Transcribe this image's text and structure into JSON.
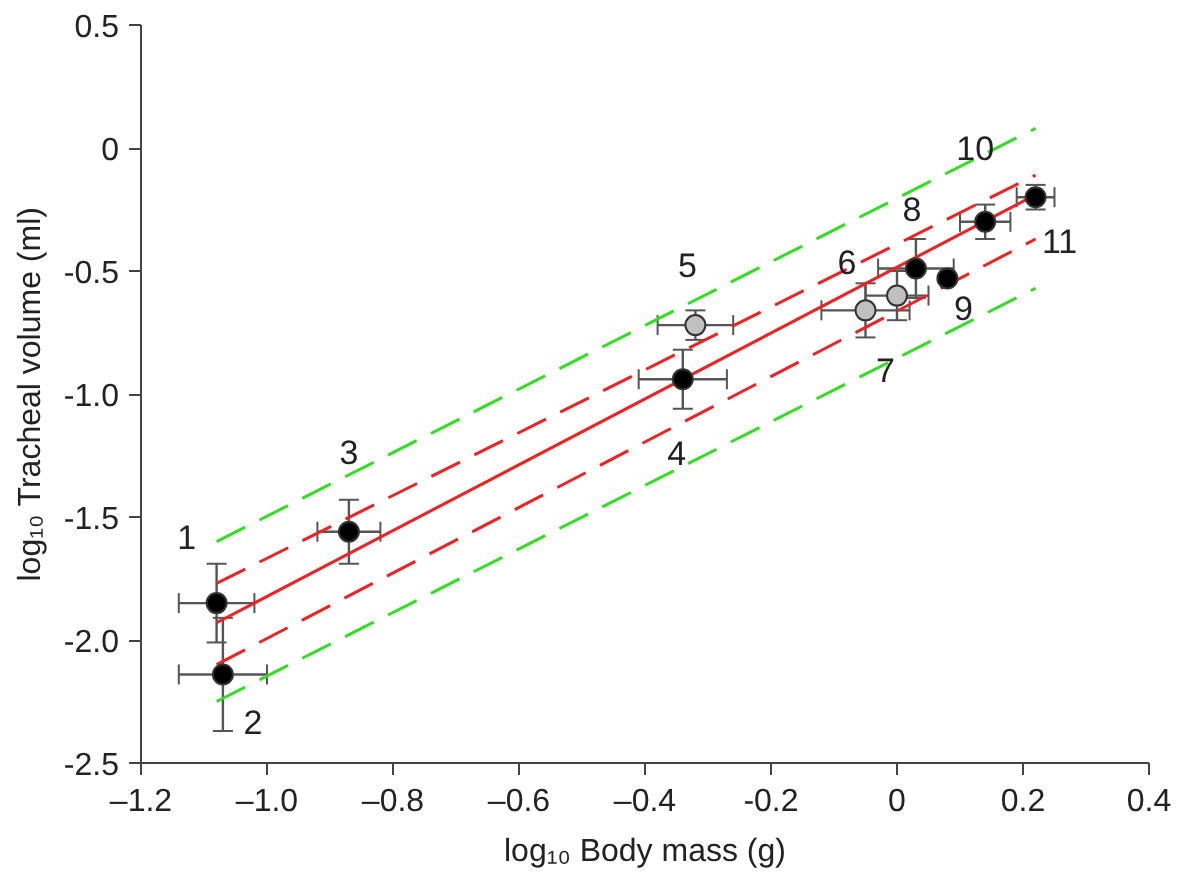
{
  "chart_data": {
    "type": "scatter",
    "xlabel": "log₁₀ Body mass (g)",
    "ylabel": "log₁₀ Tracheal volume (ml)",
    "xlim": [
      -1.2,
      0.4
    ],
    "ylim": [
      -2.5,
      0.5
    ],
    "xticks": [
      {
        "value": -1.2,
        "label": "–1.2"
      },
      {
        "value": -1.0,
        "label": "–1.0"
      },
      {
        "value": -0.8,
        "label": "–0.8"
      },
      {
        "value": -0.6,
        "label": "–0.6"
      },
      {
        "value": -0.4,
        "label": "–0.4"
      },
      {
        "value": -0.2,
        "label": "-0.2"
      },
      0,
      0.2,
      0.4
    ],
    "yticks": [
      0.5,
      0,
      {
        "value": -0.5,
        "label": "-0.5"
      },
      {
        "value": -1.0,
        "label": "-1.0"
      },
      {
        "value": -1.5,
        "label": "-1.5"
      },
      {
        "value": -2.0,
        "label": "-2.0"
      },
      {
        "value": -2.5,
        "label": "-2.5"
      }
    ],
    "grid": false,
    "series": [
      {
        "type": "line",
        "color": "#33dd22",
        "line_style": "dashed",
        "x": [
          -1.08,
          0.22
        ],
        "values": [
          -1.6,
          0.08
        ]
      },
      {
        "type": "line",
        "color": "#33dd22",
        "line_style": "dashed",
        "x": [
          -1.08,
          0.22
        ],
        "values": [
          -2.25,
          -0.57
        ]
      },
      {
        "type": "line",
        "color": "#ee2222",
        "line_style": "dashed",
        "x": [
          -1.08,
          0.22
        ],
        "values": [
          -1.77,
          -0.11
        ]
      },
      {
        "type": "line",
        "color": "#ee2222",
        "line_style": "dashed",
        "x": [
          -1.08,
          0.22
        ],
        "values": [
          -2.1,
          -0.37
        ]
      },
      {
        "type": "line",
        "color": "#ee2222",
        "line_style": "solid",
        "x": [
          -1.08,
          0.22
        ],
        "values": [
          -1.93,
          -0.19
        ]
      },
      {
        "marker": "circle",
        "x": [
          -1.08,
          -1.07,
          -0.87,
          -0.34,
          -0.32,
          0.0,
          -0.05,
          0.03,
          0.08,
          0.14,
          0.22
        ],
        "values": [
          -1.85,
          -2.14,
          -1.56,
          -0.94,
          -0.72,
          -0.6,
          -0.66,
          -0.49,
          -0.53,
          -0.3,
          -0.2
        ],
        "colors": [
          "#000000",
          "#000000",
          "#000000",
          "#000000",
          "#c0c0c0",
          "#c0c0c0",
          "#c0c0c0",
          "#000000",
          "#000000",
          "#000000",
          "#000000"
        ],
        "errors": [
          0.16,
          [
            -2.37,
            -1.91
          ],
          0.13,
          0.12,
          0.06,
          0.1,
          0.11,
          0.12,
          null,
          0.07,
          0.05
        ],
        "xerrors": [
          0.06,
          0.07,
          0.05,
          0.07,
          0.06,
          0.05,
          0.07,
          0.06,
          null,
          0.04,
          0.03
        ]
      }
    ],
    "annotations": [
      {
        "text": "1",
        "x": -1.08,
        "y": -1.85
      },
      {
        "text": "2",
        "x": -1.07,
        "y": -2.14
      },
      {
        "text": "3",
        "x": -0.87,
        "y": -1.56
      },
      {
        "text": "4",
        "x": -0.34,
        "y": -0.94
      },
      {
        "text": "5",
        "x": -0.32,
        "y": -0.72
      },
      {
        "text": "6",
        "x": 0.0,
        "y": -0.6
      },
      {
        "text": "7",
        "x": -0.05,
        "y": -0.66
      },
      {
        "text": "8",
        "x": 0.03,
        "y": -0.49
      },
      {
        "text": "9",
        "x": 0.08,
        "y": -0.53
      },
      {
        "text": "10",
        "x": 0.14,
        "y": -0.3
      },
      {
        "text": "11",
        "x": 0.22,
        "y": -0.2
      }
    ]
  }
}
